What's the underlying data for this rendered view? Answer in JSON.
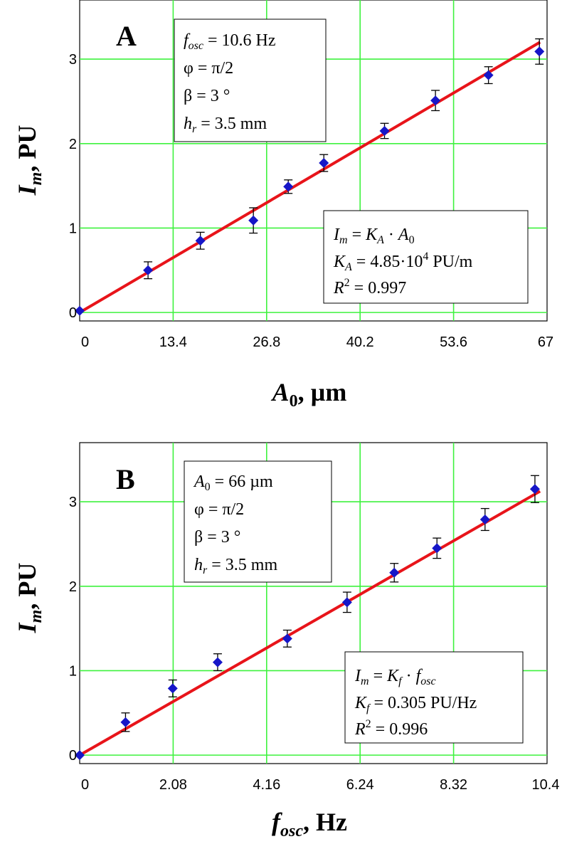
{
  "chart_data": [
    {
      "type": "scatter",
      "panel_label": "A",
      "xlabel_main": "A",
      "xlabel_sub": "0",
      "xlabel_rest": ", µm",
      "ylabel_main": "I",
      "ylabel_sub": "m",
      "ylabel_rest": ", PU",
      "xlim": [
        0,
        67
      ],
      "ylim": [
        -0.1,
        3.7
      ],
      "xticks": [
        "0",
        "13.4",
        "26.8",
        "40.2",
        "53.6",
        "67"
      ],
      "xtick_values": [
        0,
        13.4,
        26.8,
        40.2,
        53.6,
        67
      ],
      "yticks": [
        "0",
        "1",
        "2",
        "3"
      ],
      "ytick_values": [
        0,
        1,
        2,
        3
      ],
      "grid": true,
      "x": [
        0,
        9.8,
        17.3,
        24.9,
        29.9,
        35.0,
        43.7,
        51.0,
        58.6,
        65.9
      ],
      "y": [
        0.02,
        0.5,
        0.85,
        1.09,
        1.49,
        1.77,
        2.15,
        2.51,
        2.81,
        3.09
      ],
      "yerr": [
        0.0,
        0.1,
        0.1,
        0.15,
        0.08,
        0.1,
        0.09,
        0.12,
        0.1,
        0.15
      ],
      "fit": {
        "type": "line",
        "slope": 0.0485,
        "intercept": 0
      },
      "params": {
        "l1_main": "f",
        "l1_sub": "osc",
        "l1_rest": " = 10.6 Hz",
        "l2": "φ = π/2",
        "l3": "β = 3 °",
        "l4_main": "h",
        "l4_sub": "r",
        "l4_rest": " = 3.5 mm"
      },
      "fit_box": {
        "eq_a": "I",
        "eq_a_sub": "m",
        "eq_b": " = ",
        "eq_c": "K",
        "eq_c_sub": "A",
        "eq_d": " · ",
        "eq_e": "A",
        "eq_e_sub": "0",
        "k_main": "K",
        "k_sub": "A",
        "k_val": " = 4.85·10",
        "k_exp": "4",
        "k_unit": " PU/m",
        "r_main": "R",
        "r_exp": "2",
        "r_val": " = 0.997"
      }
    },
    {
      "type": "scatter",
      "panel_label": "B",
      "xlabel_main": "f",
      "xlabel_sub": "osc",
      "xlabel_rest": ", Hz",
      "ylabel_main": "I",
      "ylabel_sub": "m",
      "ylabel_rest": ", PU",
      "xlim": [
        0,
        10.4
      ],
      "ylim": [
        -0.1,
        3.7
      ],
      "xticks": [
        "0",
        "2.08",
        "4.16",
        "6.24",
        "8.32",
        "10.4"
      ],
      "xtick_values": [
        0,
        2.08,
        4.16,
        6.24,
        8.32,
        10.4
      ],
      "yticks": [
        "0",
        "1",
        "2",
        "3"
      ],
      "ytick_values": [
        0,
        1,
        2,
        3
      ],
      "grid": true,
      "x": [
        0,
        1.02,
        2.07,
        3.07,
        4.62,
        5.95,
        7.0,
        7.95,
        9.02,
        10.13
      ],
      "y": [
        0.0,
        0.39,
        0.79,
        1.1,
        1.38,
        1.81,
        2.16,
        2.45,
        2.79,
        3.15
      ],
      "yerr": [
        0.0,
        0.11,
        0.1,
        0.1,
        0.1,
        0.12,
        0.11,
        0.12,
        0.13,
        0.16
      ],
      "fit": {
        "type": "line",
        "slope": 0.305,
        "intercept": 0
      },
      "params": {
        "l1_main": "A",
        "l1_sub": "0",
        "l1_rest": " = 66 µm",
        "l2": "φ = π/2",
        "l3": "β = 3 °",
        "l4_main": "h",
        "l4_sub": "r",
        "l4_rest": " = 3.5 mm"
      },
      "fit_box": {
        "eq_a": "I",
        "eq_a_sub": "m",
        "eq_b": " = ",
        "eq_c": "K",
        "eq_c_sub": "f",
        "eq_d": " · ",
        "eq_e": "f",
        "eq_e_sub": "osc",
        "k_main": "K",
        "k_sub": "f",
        "k_val": " = 0.305 PU/Hz",
        "r_main": "R",
        "r_exp": "2",
        "r_val": " = 0.996"
      }
    }
  ],
  "colors": {
    "grid": "#3ef23e",
    "fit_line": "#e8141a",
    "marker": "#1616c8",
    "error_bar": "#000000",
    "axis": "#000000"
  }
}
